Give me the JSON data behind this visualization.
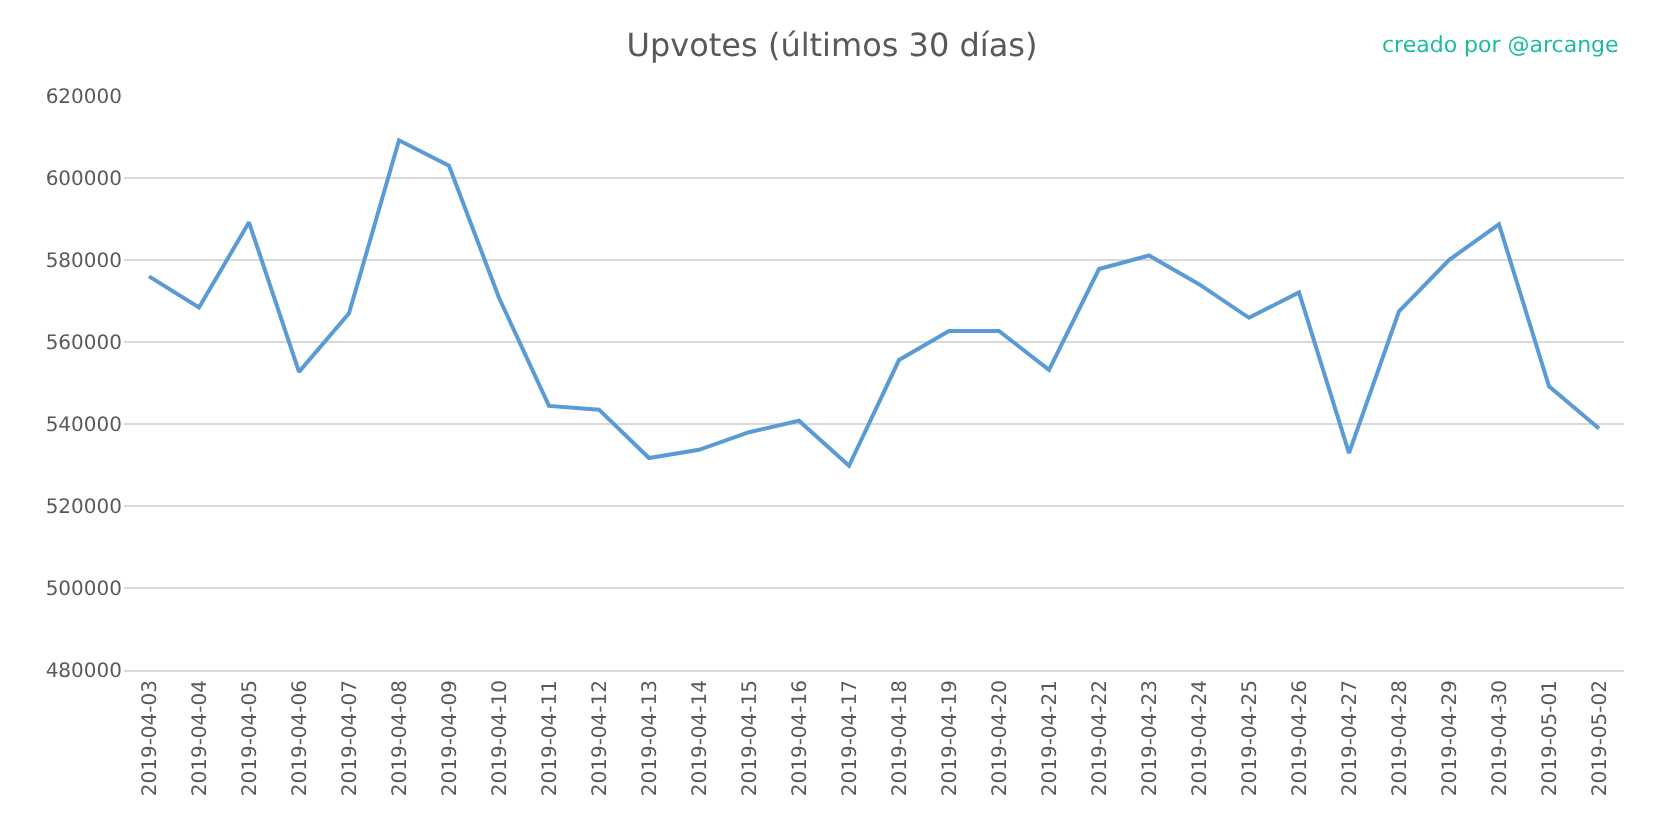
{
  "chart_data": {
    "type": "line",
    "title": "Upvotes (últimos 30 días)",
    "annotations": [
      "creado por @arcange"
    ],
    "categories": [
      "2019-04-03",
      "2019-04-04",
      "2019-04-05",
      "2019-04-06",
      "2019-04-07",
      "2019-04-08",
      "2019-04-09",
      "2019-04-10",
      "2019-04-11",
      "2019-04-12",
      "2019-04-13",
      "2019-04-14",
      "2019-04-15",
      "2019-04-16",
      "2019-04-17",
      "2019-04-18",
      "2019-04-19",
      "2019-04-20",
      "2019-04-21",
      "2019-04-22",
      "2019-04-23",
      "2019-04-24",
      "2019-04-25",
      "2019-04-26",
      "2019-04-27",
      "2019-04-28",
      "2019-04-29",
      "2019-04-30",
      "2019-05-01",
      "2019-05-02"
    ],
    "series": [
      {
        "color": "#5b9bd5",
        "values": [
          576000,
          568400,
          589200,
          552700,
          567000,
          609200,
          603000,
          570800,
          544400,
          543500,
          531700,
          533700,
          538000,
          540800,
          529800,
          555600,
          562700,
          562700,
          553200,
          577800,
          581100,
          574100,
          565900,
          572100,
          532900,
          567500,
          580000,
          588700,
          549200,
          538900
        ]
      }
    ],
    "ylim": [
      480000,
      620000
    ],
    "yticks": [
      480000,
      500000,
      520000,
      540000,
      560000,
      580000,
      600000,
      620000
    ],
    "grid": "y",
    "marker": "none",
    "line_style": "solid"
  }
}
